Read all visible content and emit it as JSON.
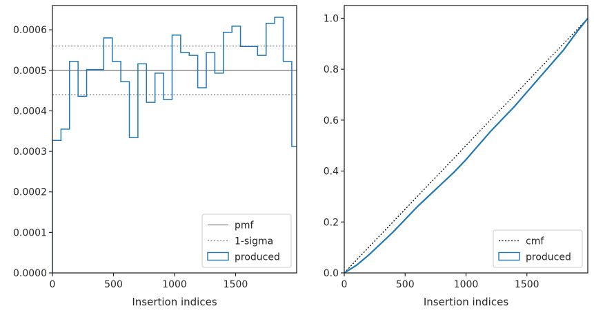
{
  "chart_data": [
    {
      "type": "line",
      "xlabel": "Insertion indices",
      "ylabel": "",
      "xlim": [
        0,
        2000
      ],
      "ylim": [
        0,
        0.00066
      ],
      "xticks": [
        0,
        500,
        1000,
        1500
      ],
      "yticks": [
        "0.0000",
        "0.0001",
        "0.0002",
        "0.0003",
        "0.0004",
        "0.0005",
        "0.0006"
      ],
      "grid": false,
      "legend_position": "lower-right",
      "reference_lines": [
        {
          "name": "pmf",
          "y": 0.0005,
          "style": "solid",
          "color": "#808080"
        },
        {
          "name": "1-sigma",
          "y": 0.00056,
          "style": "dotted",
          "color": "#808080"
        },
        {
          "name": "1-sigma",
          "y": 0.00044,
          "style": "dotted",
          "color": "#808080"
        }
      ],
      "histogram": {
        "name": "produced",
        "color": "#1f77b4",
        "bin_edges": [
          0,
          70,
          140,
          210,
          280,
          350,
          420,
          490,
          560,
          630,
          700,
          770,
          840,
          910,
          980,
          1050,
          1120,
          1190,
          1260,
          1330,
          1400,
          1470,
          1540,
          1610,
          1680,
          1750,
          1820,
          1890,
          1960,
          2030
        ],
        "values": [
          0.000327,
          0.000355,
          0.000522,
          0.000436,
          0.000502,
          0.000502,
          0.00058,
          0.000522,
          0.000472,
          0.000334,
          0.000516,
          0.000421,
          0.000493,
          0.000428,
          0.000587,
          0.000544,
          0.000537,
          0.000457,
          0.000544,
          0.000493,
          0.000594,
          0.000609,
          0.000559,
          0.000559,
          0.000537,
          0.000616,
          0.000631,
          0.000522,
          0.000312
        ]
      },
      "legend": [
        "pmf",
        "1-sigma",
        "produced"
      ]
    },
    {
      "type": "line",
      "xlabel": "Insertion indices",
      "ylabel": "",
      "xlim": [
        0,
        2000
      ],
      "ylim": [
        0,
        1.05
      ],
      "xticks": [
        0,
        500,
        1000,
        1500
      ],
      "yticks": [
        "0.0",
        "0.2",
        "0.4",
        "0.6",
        "0.8",
        "1.0"
      ],
      "grid": false,
      "legend_position": "lower-right",
      "series": [
        {
          "name": "cmf",
          "style": "dotted",
          "color": "#000000",
          "x": [
            0,
            2000
          ],
          "y": [
            0,
            1.0
          ]
        },
        {
          "name": "produced",
          "style": "solid",
          "color": "#1f77b4",
          "x": [
            0,
            100,
            200,
            300,
            400,
            500,
            600,
            700,
            800,
            900,
            1000,
            1100,
            1200,
            1300,
            1400,
            1500,
            1600,
            1700,
            1800,
            1900,
            2000
          ],
          "y": [
            0,
            0.03,
            0.07,
            0.115,
            0.16,
            0.21,
            0.26,
            0.305,
            0.35,
            0.395,
            0.445,
            0.5,
            0.555,
            0.605,
            0.655,
            0.71,
            0.765,
            0.82,
            0.875,
            0.94,
            1.0
          ]
        }
      ],
      "legend": [
        "cmf",
        "produced"
      ]
    }
  ]
}
